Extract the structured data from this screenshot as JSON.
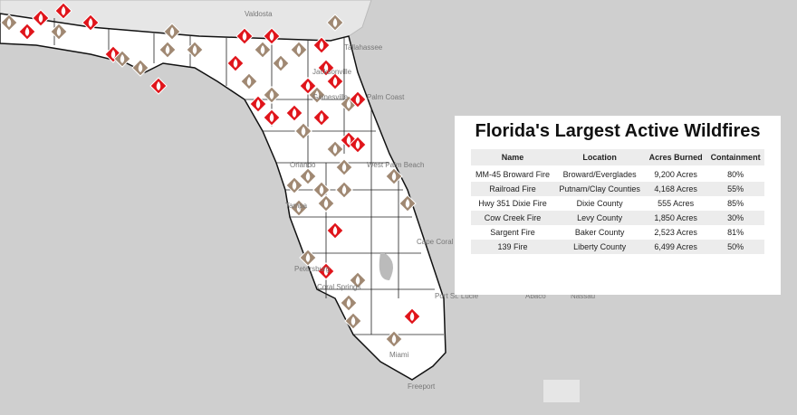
{
  "map": {
    "labels": [
      "Valdosta",
      "Tallahassee",
      "Jacksonville",
      "Gainesville",
      "Palm Coast",
      "Orlando",
      "Tampa",
      "Petersburg",
      "Port St. Lucie",
      "West Palm Beach",
      "Cape Coral",
      "Coral Springs",
      "Miami",
      "Freeport",
      "Abaco",
      "Nassau"
    ]
  },
  "table": {
    "title": "Florida's Largest Active Wildfires",
    "columns": [
      "Name",
      "Location",
      "Acres Burned",
      "Containment"
    ],
    "rows": [
      [
        "MM-45 Broward Fire",
        "Broward/Everglades",
        "9,200 Acres",
        "80%"
      ],
      [
        "Railroad Fire",
        "Putnam/Clay Counties",
        "4,168 Acres",
        "55%"
      ],
      [
        "Hwy 351 Dixie Fire",
        "Dixie County",
        "555 Acres",
        "85%"
      ],
      [
        "Cow Creek Fire",
        "Levy County",
        "1,850 Acres",
        "30%"
      ],
      [
        "Sargent Fire",
        "Baker County",
        "2,523 Acres",
        "81%"
      ],
      [
        "139 Fire",
        "Liberty County",
        "6,499 Acres",
        "50%"
      ]
    ]
  }
}
